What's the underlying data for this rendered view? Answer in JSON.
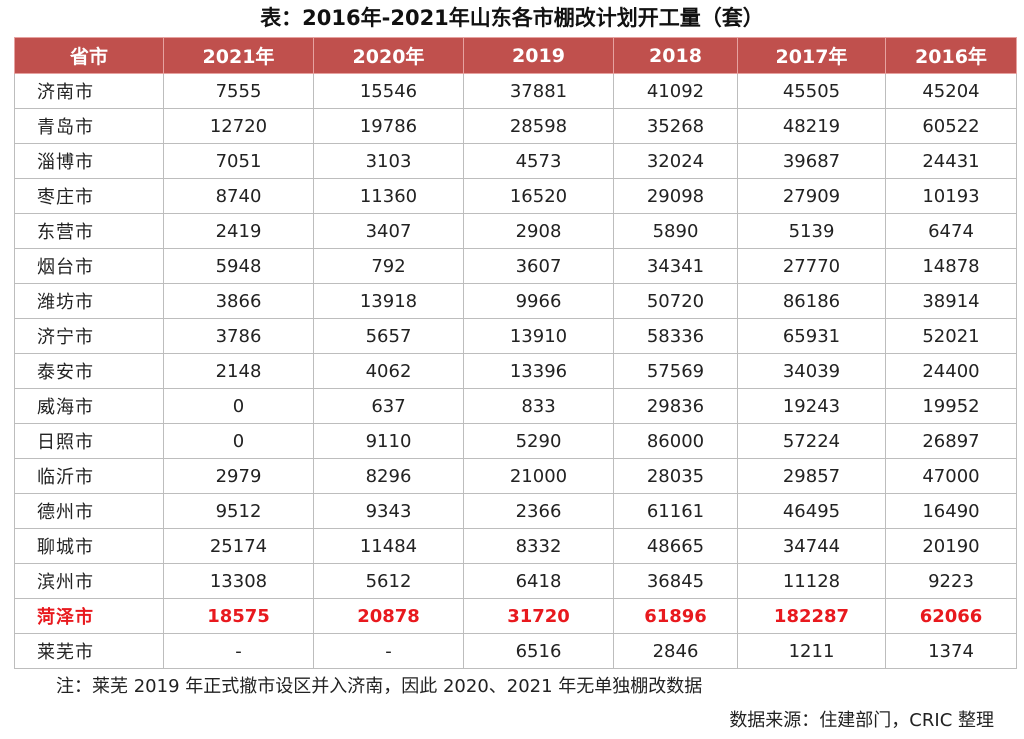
{
  "title": "表：2016年-2021年山东各市棚改计划开工量（套）",
  "headers": [
    "省市",
    "2021年",
    "2020年",
    "2019",
    "2018",
    "2017年",
    "2016年"
  ],
  "rows": [
    [
      "济南市",
      "7555",
      "15546",
      "37881",
      "41092",
      "45505",
      "45204"
    ],
    [
      "青岛市",
      "12720",
      "19786",
      "28598",
      "35268",
      "48219",
      "60522"
    ],
    [
      "淄博市",
      "7051",
      "3103",
      "4573",
      "32024",
      "39687",
      "24431"
    ],
    [
      "枣庄市",
      "8740",
      "11360",
      "16520",
      "29098",
      "27909",
      "10193"
    ],
    [
      "东营市",
      "2419",
      "3407",
      "2908",
      "5890",
      "5139",
      "6474"
    ],
    [
      "烟台市",
      "5948",
      "792",
      "3607",
      "34341",
      "27770",
      "14878"
    ],
    [
      "潍坊市",
      "3866",
      "13918",
      "9966",
      "50720",
      "86186",
      "38914"
    ],
    [
      "济宁市",
      "3786",
      "5657",
      "13910",
      "58336",
      "65931",
      "52021"
    ],
    [
      "泰安市",
      "2148",
      "4062",
      "13396",
      "57569",
      "34039",
      "24400"
    ],
    [
      "威海市",
      "0",
      "637",
      "833",
      "29836",
      "19243",
      "19952"
    ],
    [
      "日照市",
      "0",
      "9110",
      "5290",
      "86000",
      "57224",
      "26897"
    ],
    [
      "临沂市",
      "2979",
      "8296",
      "21000",
      "28035",
      "29857",
      "47000"
    ],
    [
      "德州市",
      "9512",
      "9343",
      "2366",
      "61161",
      "46495",
      "16490"
    ],
    [
      "聊城市",
      "25174",
      "11484",
      "8332",
      "48665",
      "34744",
      "20190"
    ],
    [
      "滨州市",
      "13308",
      "5612",
      "6418",
      "36845",
      "11128",
      "9223"
    ],
    [
      "菏泽市",
      "18575",
      "20878",
      "31720",
      "61896",
      "182287",
      "62066"
    ],
    [
      "莱芜市",
      "-",
      "-",
      "6516",
      "2846",
      "1211",
      "1374"
    ]
  ],
  "highlight_row": "菏泽市",
  "highlight_color": "#e8191e",
  "header_color": "#c0504d",
  "note": "注：莱芜 2019 年正式撤市设区并入济南，因此 2020、2021 年无单独棚改数据",
  "source": "数据来源：住建部门，CRIC 整理"
}
